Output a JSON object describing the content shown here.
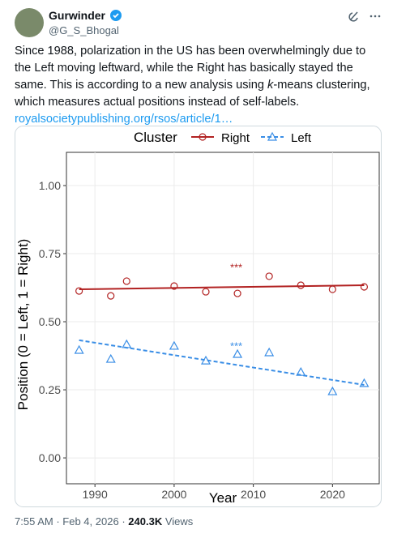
{
  "tweet": {
    "name": "Gurwinder",
    "handle": "@G_S_Bhogal",
    "text_parts": [
      "Since 1988, polarization in the US has been overwhelmingly due to the Left moving leftward, while the Right has basically stayed the same. This is according to a new analysis using ",
      "k",
      "-means clustering, which measures actual positions instead of self-labels."
    ],
    "link": "royalsocietypublishing.org/rsos/article/1…",
    "time": "7:55 AM",
    "separator": "·",
    "date": "Feb 4, 2026",
    "views": "240.3K",
    "views_label": "Views"
  },
  "chart_data": {
    "type": "scatter",
    "legend_title": "Cluster",
    "x_label": "Year",
    "y_label": "Position (0 = Left, 1 = Right)",
    "annotations": [
      "***",
      "***"
    ],
    "x": [
      1988,
      1992,
      1994,
      2000,
      2004,
      2008,
      2012,
      2016,
      2020,
      2024
    ],
    "series": [
      {
        "name": "Right",
        "color": "#b22222",
        "marker": "circle",
        "line_style": "solid",
        "values": [
          0.613,
          0.595,
          0.649,
          0.631,
          0.61,
          0.604,
          0.667,
          0.634,
          0.619,
          0.628
        ],
        "trend": {
          "x": [
            1988,
            2024
          ],
          "values": [
            0.619,
            0.634
          ]
        }
      },
      {
        "name": "Left",
        "color": "#3a8ee6",
        "marker": "triangle",
        "line_style": "dashed",
        "values": [
          0.396,
          0.363,
          0.417,
          0.411,
          0.357,
          0.381,
          0.387,
          0.315,
          0.244,
          0.274
        ],
        "trend": {
          "x": [
            1988,
            2024
          ],
          "values": [
            0.432,
            0.268
          ]
        }
      }
    ],
    "xlim": [
      1986.4,
      2025.9
    ],
    "xticks": [
      1990,
      2000,
      2010,
      2020
    ],
    "ylim": [
      -0.095,
      1.122
    ],
    "yticks": [
      {
        "value": 0,
        "label": "0.00"
      },
      {
        "value": 0.25,
        "label": "0.25"
      },
      {
        "value": 0.5,
        "label": "0.50"
      },
      {
        "value": 0.75,
        "label": "0.75"
      },
      {
        "value": 1,
        "label": "1.00"
      }
    ],
    "grid": true
  }
}
